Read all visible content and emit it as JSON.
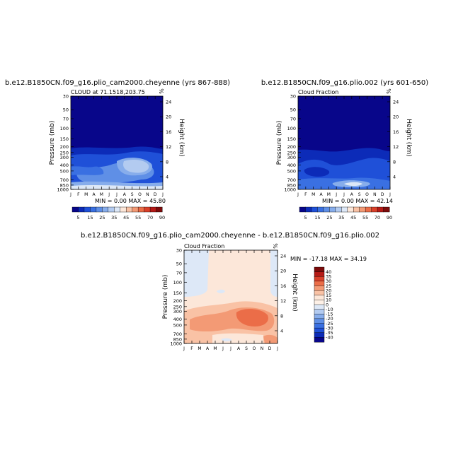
{
  "chart_data": [
    {
      "type": "heatmap",
      "title": "b.e12.B1850CN.f09_g16.plio_cam2000.cheyenne (yrs 867-888)",
      "subtitle": "CLOUD at 71.1518,203.75",
      "pct_label": "%",
      "ylabel": "Pressure (mb)",
      "y2label": "Height (km)",
      "x_ticklabels": [
        "J",
        "F",
        "M",
        "A",
        "M",
        "J",
        "J",
        "A",
        "S",
        "O",
        "N",
        "D",
        "J"
      ],
      "pressure_ticks": [
        "30",
        "50",
        "70",
        "100",
        "150",
        "200",
        "250",
        "300",
        "400",
        "500",
        "700",
        "850",
        "1000"
      ],
      "height_ticks": [
        "24",
        "20",
        "16",
        "12",
        "8",
        "4"
      ],
      "min": "0.00",
      "max": "45.80",
      "min_label": "MIN =",
      "max_label": "MAX =",
      "colorbar_labels": [
        "5",
        "15",
        "25",
        "35",
        "45",
        "55",
        "70",
        "90"
      ],
      "colorbar_colors": [
        "#08068a",
        "#0c2bb8",
        "#1f50d8",
        "#3a70e2",
        "#5f8fe6",
        "#87adeb",
        "#b3cbf0",
        "#dde8f7",
        "#fce7d9",
        "#f9c2a5",
        "#f39a75",
        "#eb6d48",
        "#d9402a",
        "#b51a16",
        "#7c0b0b"
      ]
    },
    {
      "type": "heatmap",
      "title": "b.e12.B1850CN.f09_g16.plio.002 (yrs 601-650)",
      "subtitle": "Cloud Fraction",
      "pct_label": "%",
      "ylabel": "Pressure (mb)",
      "y2label": "Height (km)",
      "x_ticklabels": [
        "J",
        "F",
        "M",
        "A",
        "M",
        "J",
        "J",
        "A",
        "S",
        "O",
        "N",
        "D",
        "J"
      ],
      "pressure_ticks": [
        "30",
        "50",
        "70",
        "100",
        "150",
        "200",
        "250",
        "300",
        "400",
        "500",
        "700",
        "850",
        "1000"
      ],
      "height_ticks": [
        "24",
        "20",
        "16",
        "12",
        "8",
        "4"
      ],
      "min": "0.00",
      "max": "42.14",
      "min_label": "MIN =",
      "max_label": "MAX =",
      "colorbar_labels": [
        "5",
        "15",
        "25",
        "35",
        "45",
        "55",
        "70",
        "90"
      ],
      "colorbar_colors": [
        "#08068a",
        "#0c2bb8",
        "#1f50d8",
        "#3a70e2",
        "#5f8fe6",
        "#87adeb",
        "#b3cbf0",
        "#dde8f7",
        "#fce7d9",
        "#f9c2a5",
        "#f39a75",
        "#eb6d48",
        "#d9402a",
        "#b51a16",
        "#7c0b0b"
      ]
    },
    {
      "type": "heatmap",
      "title": "b.e12.B1850CN.f09_g16.plio_cam2000.cheyenne - b.e12.B1850CN.f09_g16.plio.002",
      "subtitle": "Cloud Fraction",
      "pct_label": "%",
      "ylabel": "Pressure (mb)",
      "y2label": "Height (km)",
      "x_ticklabels": [
        "J",
        "F",
        "M",
        "A",
        "M",
        "J",
        "J",
        "A",
        "S",
        "O",
        "N",
        "D",
        "J"
      ],
      "pressure_ticks": [
        "30",
        "50",
        "70",
        "100",
        "150",
        "200",
        "250",
        "300",
        "400",
        "500",
        "700",
        "850",
        "1000"
      ],
      "height_ticks": [
        "24",
        "20",
        "16",
        "12",
        "8",
        "4"
      ],
      "min": "-17.18",
      "max": "34.19",
      "min_label": "MIN =",
      "max_label": "MAX =",
      "colorbar_labels": [
        "40",
        "35",
        "30",
        "25",
        "20",
        "15",
        "10",
        "0",
        "-10",
        "-15",
        "-20",
        "-25",
        "-30",
        "-35",
        "-40"
      ],
      "colorbar_colors": [
        "#7c0b0b",
        "#b51a16",
        "#d9402a",
        "#eb6d48",
        "#f39a75",
        "#f9c2a5",
        "#fce7d9",
        "#fdf0e6",
        "#dde8f7",
        "#b3cbf0",
        "#87adeb",
        "#5f8fe6",
        "#3a70e2",
        "#1f50d8",
        "#0c2bb8",
        "#08068a"
      ]
    }
  ]
}
